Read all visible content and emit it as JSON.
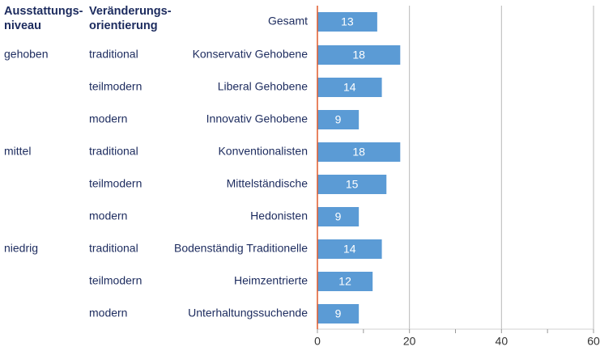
{
  "chart_data": {
    "type": "bar",
    "orientation": "horizontal",
    "column_headers": [
      [
        "Ausstattungs-",
        "niveau"
      ],
      [
        "Veränderungs-",
        "orientierung"
      ]
    ],
    "levels": [
      null,
      "gehoben",
      null,
      null,
      "mittel",
      null,
      null,
      "niedrig",
      null,
      null
    ],
    "orientations": [
      null,
      "traditional",
      "teilmodern",
      "modern",
      "traditional",
      "teilmodern",
      "modern",
      "traditional",
      "teilmodern",
      "modern"
    ],
    "categories": [
      "Gesamt",
      "Konservativ Gehobene",
      "Liberal Gehobene",
      "Innovativ Gehobene",
      "Konventionalisten",
      "Mittelständische",
      "Hedonisten",
      "Bodenständig Traditionelle",
      "Heimzentrierte",
      "Unterhaltungssuchende"
    ],
    "values": [
      13,
      18,
      14,
      9,
      18,
      15,
      9,
      14,
      12,
      9
    ],
    "color": "#5b9bd5",
    "axis_color": "#e05a2b",
    "xlim": [
      0,
      60
    ],
    "xticks": [
      0,
      20,
      40,
      60
    ],
    "minor_xticks": [
      10,
      30,
      50
    ],
    "grid": true
  }
}
